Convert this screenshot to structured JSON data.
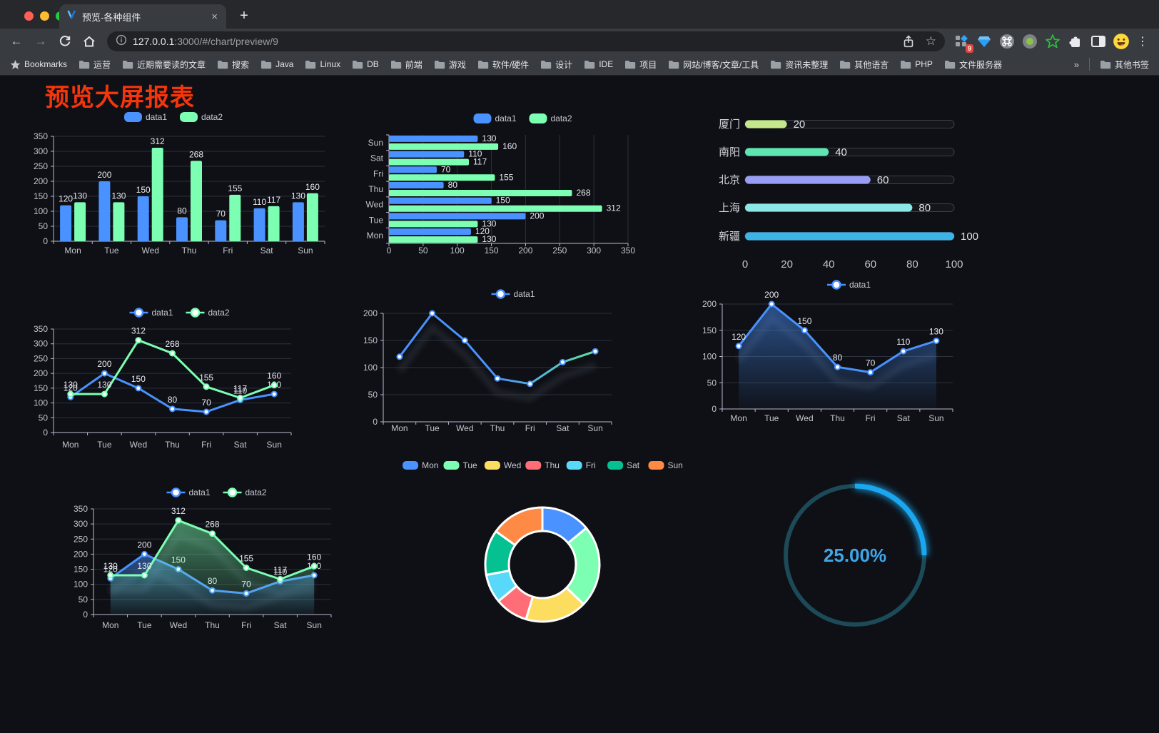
{
  "browser": {
    "traffic_lights": [
      "#ff5f57",
      "#febc2e",
      "#28c840"
    ],
    "tab": {
      "title": "预览-各种组件"
    },
    "glyphs": {
      "close": "×",
      "new_tab": "+",
      "back": "←",
      "forward": "→",
      "menu": "⋮",
      "star": "☆",
      "overflow": "»"
    },
    "url": {
      "host": "127.0.0.1",
      "rest": ":3000/#/chart/preview/9"
    },
    "bookmarks_label": "Bookmarks",
    "bookmarks": [
      "运营",
      "近期需要读的文章",
      "搜索",
      "Java",
      "Linux",
      "DB",
      "前端",
      "游戏",
      "软件/硬件",
      "设计",
      "IDE",
      "项目",
      "网站/博客/文章/工具",
      "资讯未整理",
      "其他语言",
      "PHP",
      "文件服务器"
    ],
    "other_bookmarks": "其他书签",
    "extension_badge": "9"
  },
  "page": {
    "title": "预览大屏报表",
    "title_color": "#f5350b",
    "background": "#0e1015"
  },
  "chart_data": [
    {
      "id": "bar-week",
      "type": "bar",
      "title": "",
      "categories": [
        "Mon",
        "Tue",
        "Wed",
        "Thu",
        "Fri",
        "Sat",
        "Sun"
      ],
      "series": [
        {
          "name": "data1",
          "color": "#4992ff",
          "values": [
            120,
            200,
            150,
            80,
            70,
            110,
            130
          ]
        },
        {
          "name": "data2",
          "color": "#7cffb2",
          "values": [
            130,
            130,
            312,
            268,
            155,
            117,
            160
          ]
        }
      ],
      "ylim": [
        0,
        350
      ],
      "ytick_step": 50,
      "labels": true,
      "legend_position": "top",
      "grid": true
    },
    {
      "id": "hbar-week",
      "type": "hbar",
      "title": "",
      "categories": [
        "Mon",
        "Tue",
        "Wed",
        "Thu",
        "Fri",
        "Sat",
        "Sun"
      ],
      "series": [
        {
          "name": "data1",
          "color": "#4992ff",
          "values": [
            120,
            200,
            150,
            80,
            70,
            110,
            130
          ]
        },
        {
          "name": "data2",
          "color": "#7cffb2",
          "values": [
            130,
            130,
            312,
            268,
            155,
            117,
            160
          ]
        }
      ],
      "xlim": [
        0,
        350
      ],
      "xtick_step": 50,
      "labels": true,
      "legend_position": "top",
      "grid": true
    },
    {
      "id": "city-progress",
      "type": "progress",
      "max": 100,
      "items": [
        {
          "label": "厦门",
          "value": 20,
          "color": "#c5e98a"
        },
        {
          "label": "南阳",
          "value": 40,
          "color": "#5ee6b0"
        },
        {
          "label": "北京",
          "value": 60,
          "color": "#999df3"
        },
        {
          "label": "上海",
          "value": 80,
          "color": "#8ce8e4"
        },
        {
          "label": "新疆",
          "value": 100,
          "color": "#3cb4e7"
        }
      ],
      "xticks": [
        0,
        20,
        40,
        60,
        80,
        100
      ]
    },
    {
      "id": "line-week-2",
      "type": "line",
      "title": "",
      "categories": [
        "Mon",
        "Tue",
        "Wed",
        "Thu",
        "Fri",
        "Sat",
        "Sun"
      ],
      "series": [
        {
          "name": "data1",
          "color": "#4992ff",
          "values": [
            120,
            200,
            150,
            80,
            70,
            110,
            130
          ]
        },
        {
          "name": "data2",
          "color": "#7cffb2",
          "values": [
            130,
            130,
            312,
            268,
            155,
            117,
            160
          ]
        }
      ],
      "ylim": [
        0,
        350
      ],
      "ytick_step": 50,
      "labels": true,
      "shadow": false,
      "grid": true
    },
    {
      "id": "line-gradient",
      "type": "line",
      "title": "",
      "categories": [
        "Mon",
        "Tue",
        "Wed",
        "Thu",
        "Fri",
        "Sat",
        "Sun"
      ],
      "series": [
        {
          "name": "data1",
          "color": "#4992ff",
          "color_end": "#5fe3a1",
          "values": [
            120,
            200,
            150,
            80,
            70,
            110,
            130
          ]
        }
      ],
      "ylim": [
        0,
        200
      ],
      "ytick_step": 50,
      "labels": false,
      "shadow": true,
      "grid": true
    },
    {
      "id": "area-week",
      "type": "line",
      "title": "",
      "categories": [
        "Mon",
        "Tue",
        "Wed",
        "Thu",
        "Fri",
        "Sat",
        "Sun"
      ],
      "series": [
        {
          "name": "data1",
          "color": "#4992ff",
          "area": true,
          "values": [
            120,
            200,
            150,
            80,
            70,
            110,
            130
          ]
        }
      ],
      "ylim": [
        0,
        200
      ],
      "ytick_step": 50,
      "labels": true,
      "shadow": true,
      "grid": true
    },
    {
      "id": "area-week-2",
      "type": "line",
      "title": "",
      "categories": [
        "Mon",
        "Tue",
        "Wed",
        "Thu",
        "Fri",
        "Sat",
        "Sun"
      ],
      "series": [
        {
          "name": "data1",
          "color": "#4992ff",
          "area": true,
          "values": [
            120,
            200,
            150,
            80,
            70,
            110,
            130
          ]
        },
        {
          "name": "data2",
          "color": "#7cffb2",
          "area": true,
          "values": [
            130,
            130,
            312,
            268,
            155,
            117,
            160
          ]
        }
      ],
      "ylim": [
        0,
        350
      ],
      "ytick_step": 50,
      "labels": true,
      "shadow": true,
      "grid": true
    },
    {
      "id": "week-donut",
      "type": "pie",
      "items": [
        {
          "label": "Mon",
          "value": 120,
          "color": "#4992ff"
        },
        {
          "label": "Tue",
          "value": 200,
          "color": "#7cffb2"
        },
        {
          "label": "Wed",
          "value": 150,
          "color": "#fddd60"
        },
        {
          "label": "Thu",
          "value": 80,
          "color": "#ff6e76"
        },
        {
          "label": "Fri",
          "value": 70,
          "color": "#58d9f9"
        },
        {
          "label": "Sat",
          "value": 110,
          "color": "#05c091"
        },
        {
          "label": "Sun",
          "value": 130,
          "color": "#ff8a45"
        }
      ],
      "legend_position": "top"
    },
    {
      "id": "percent-gauge",
      "type": "gauge",
      "value": 25,
      "label": "25.00%",
      "color": "#1aa7f0",
      "track_color": "#1d4a58",
      "text_color": "#3fa6e8"
    }
  ]
}
